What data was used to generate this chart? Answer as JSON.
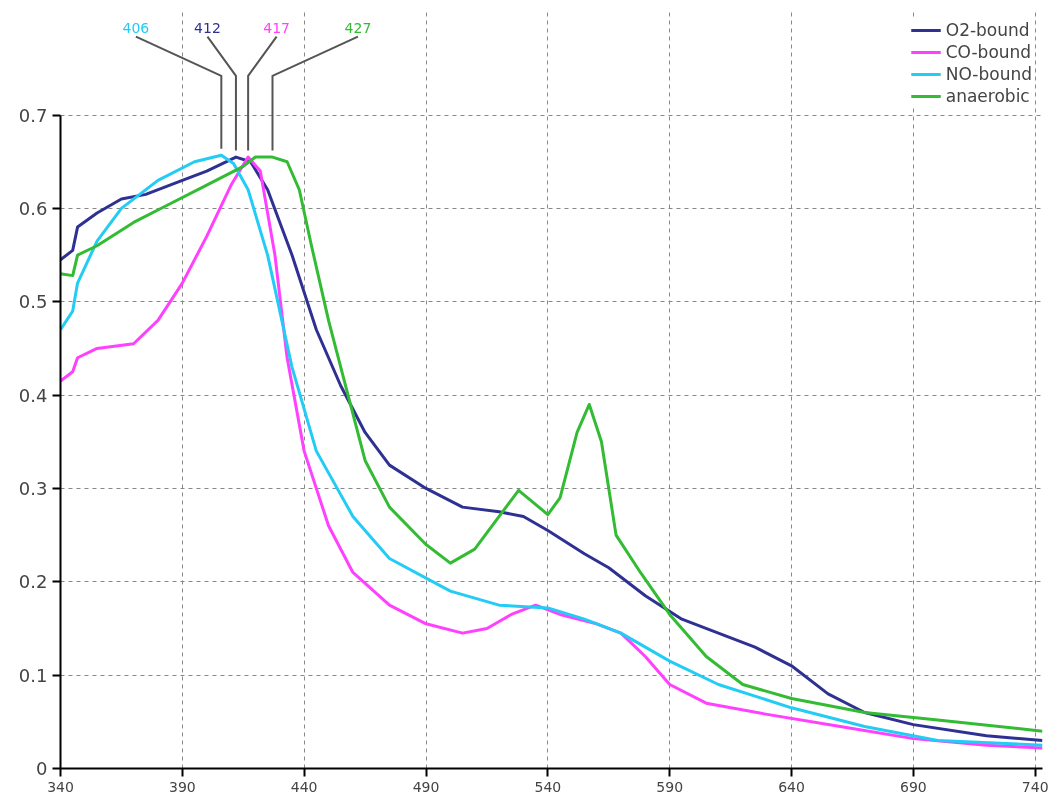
{
  "chart_data": {
    "type": "line",
    "xlim": [
      340,
      743
    ],
    "ylim": [
      0,
      0.7
    ],
    "xticks": [
      340,
      390,
      440,
      490,
      540,
      590,
      640,
      690,
      740
    ],
    "yticks": [
      0,
      0.1,
      0.2,
      0.3,
      0.4,
      0.5,
      0.6,
      0.7
    ],
    "grid": true,
    "legend": "top right",
    "line_style": "solid",
    "marker": "none",
    "annotations": [
      {
        "text": "406",
        "x": 406,
        "y": 0.657
      },
      {
        "text": "412",
        "x": 412,
        "y": 0.655
      },
      {
        "text": "417",
        "x": 417,
        "y": 0.655
      },
      {
        "text": "427",
        "x": 427,
        "y": 0.655
      }
    ],
    "series": [
      {
        "name": "O2-bound",
        "color": "#2e3192",
        "x": [
          340,
          345,
          347,
          355,
          365,
          375,
          390,
          400,
          412,
          418,
          425,
          435,
          445,
          455,
          465,
          475,
          490,
          505,
          520,
          530,
          540,
          555,
          565,
          580,
          595,
          610,
          625,
          640,
          655,
          670,
          690,
          720,
          743
        ],
        "values": [
          0.545,
          0.555,
          0.58,
          0.595,
          0.61,
          0.615,
          0.63,
          0.64,
          0.655,
          0.65,
          0.62,
          0.55,
          0.47,
          0.41,
          0.36,
          0.325,
          0.3,
          0.28,
          0.275,
          0.27,
          0.255,
          0.23,
          0.215,
          0.185,
          0.16,
          0.145,
          0.13,
          0.11,
          0.08,
          0.06,
          0.047,
          0.035,
          0.03
        ]
      },
      {
        "name": "CO-bound",
        "color": "#ff40ff",
        "x": [
          340,
          345,
          347,
          355,
          370,
          380,
          390,
          400,
          410,
          417,
          422,
          428,
          433,
          440,
          450,
          460,
          475,
          490,
          505,
          515,
          525,
          535,
          545,
          560,
          570,
          580,
          590,
          605,
          630,
          660,
          690,
          720,
          743
        ],
        "values": [
          0.415,
          0.425,
          0.44,
          0.45,
          0.455,
          0.48,
          0.52,
          0.57,
          0.625,
          0.655,
          0.64,
          0.55,
          0.44,
          0.34,
          0.26,
          0.21,
          0.175,
          0.155,
          0.145,
          0.15,
          0.165,
          0.175,
          0.165,
          0.155,
          0.145,
          0.12,
          0.09,
          0.07,
          0.058,
          0.045,
          0.032,
          0.025,
          0.022
        ]
      },
      {
        "name": "NO-bound",
        "color": "#22ccf5",
        "x": [
          340,
          345,
          347,
          355,
          365,
          380,
          395,
          406,
          411,
          417,
          425,
          435,
          445,
          460,
          475,
          500,
          520,
          540,
          555,
          570,
          590,
          610,
          640,
          670,
          700,
          743
        ],
        "values": [
          0.47,
          0.49,
          0.52,
          0.565,
          0.6,
          0.63,
          0.65,
          0.657,
          0.648,
          0.62,
          0.55,
          0.43,
          0.34,
          0.27,
          0.225,
          0.19,
          0.175,
          0.172,
          0.16,
          0.145,
          0.115,
          0.09,
          0.065,
          0.045,
          0.03,
          0.025
        ]
      },
      {
        "name": "anaerobic",
        "color": "#33bb33",
        "x": [
          340,
          345,
          347,
          355,
          370,
          385,
          400,
          415,
          420,
          427,
          433,
          438,
          443,
          450,
          458,
          465,
          475,
          490,
          500,
          510,
          520,
          528,
          540,
          545,
          552,
          557,
          562,
          568,
          578,
          590,
          605,
          620,
          640,
          670,
          700,
          743
        ],
        "values": [
          0.53,
          0.528,
          0.55,
          0.56,
          0.585,
          0.605,
          0.625,
          0.645,
          0.655,
          0.655,
          0.65,
          0.62,
          0.56,
          0.48,
          0.4,
          0.33,
          0.28,
          0.24,
          0.22,
          0.235,
          0.27,
          0.298,
          0.272,
          0.29,
          0.36,
          0.39,
          0.35,
          0.25,
          0.21,
          0.165,
          0.12,
          0.09,
          0.075,
          0.06,
          0.052,
          0.04
        ]
      }
    ]
  }
}
